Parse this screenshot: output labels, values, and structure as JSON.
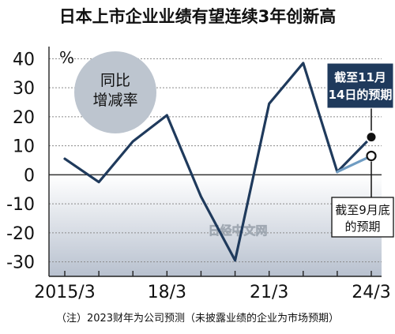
{
  "chart_data": {
    "type": "line",
    "title": "日本上市企业业绩有望连续3年创新高",
    "yunit": "%",
    "ylim": [
      -35,
      42
    ],
    "yticks": [
      40,
      30,
      20,
      10,
      0,
      -10,
      -20,
      -30
    ],
    "ytick_labels": [
      "40",
      "30",
      "20",
      "10",
      "0",
      "-10",
      "-20",
      "-30"
    ],
    "xlim": [
      0,
      9
    ],
    "xticks": [
      0,
      3,
      6,
      9
    ],
    "xtick_labels": [
      "2015/3",
      "18/3",
      "21/3",
      "24/3"
    ],
    "badge": "同比\n增减率",
    "series": [
      {
        "name": "",
        "color": "#1f3a5c",
        "x": [
          0,
          1,
          2,
          3,
          4,
          5,
          6,
          7,
          8
        ],
        "values": [
          5.5,
          -2.5,
          11.5,
          20.5,
          -7.5,
          -29.5,
          24.5,
          38.5,
          1.0
        ]
      }
    ],
    "forecasts": [
      {
        "label": "截至11月\n14日的预期",
        "color": "#1f3a5c",
        "marker": "filled",
        "from": [
          8,
          1.0
        ],
        "to": [
          9,
          13.0
        ]
      },
      {
        "label": "截至9月底\n的预期",
        "color": "#6f9cc2",
        "marker": "hollow",
        "from": [
          8,
          1.0
        ],
        "to": [
          9,
          6.5
        ]
      }
    ],
    "watermark": "日经中文网",
    "footnote": "（注）2023财年为公司预测（未披露业绩的企业为市场预期）"
  }
}
